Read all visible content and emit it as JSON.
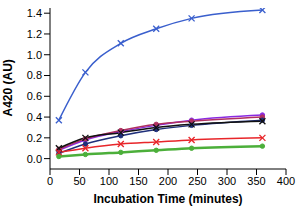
{
  "chart_data": {
    "type": "line",
    "x_label": "Incubation Time (minutes)",
    "y_label": "A420 (AU)",
    "x": [
      15,
      60,
      120,
      180,
      240,
      360
    ],
    "xlim": [
      0,
      400
    ],
    "xticks": [
      0,
      50,
      100,
      150,
      200,
      250,
      300,
      350,
      400
    ],
    "ylim": [
      -0.1,
      1.45
    ],
    "yticks": [
      {
        "value": 0,
        "label": "0.0"
      },
      0.2,
      0.4,
      0.6,
      0.8,
      {
        "value": 1,
        "label": "1.0"
      },
      1.2,
      1.4
    ],
    "grid": false,
    "series": [
      {
        "color": "#3a5fcd",
        "marker": "x",
        "values": [
          0.37,
          0.83,
          1.11,
          1.25,
          1.35,
          1.43
        ]
      },
      {
        "color": "#8a2be2",
        "marker": "circle",
        "values": [
          0.08,
          0.18,
          0.26,
          0.32,
          0.37,
          0.42
        ]
      },
      {
        "color": "#b03060",
        "marker": "circle",
        "values": [
          0.09,
          0.19,
          0.27,
          0.33,
          0.36,
          0.4
        ]
      },
      {
        "color": "#1f2f7a",
        "marker": "circle",
        "values": [
          0.05,
          0.14,
          0.22,
          0.28,
          0.32,
          0.37
        ]
      },
      {
        "color": "#111111",
        "marker": "x",
        "values": [
          0.1,
          0.2,
          0.25,
          0.3,
          0.33,
          0.36
        ]
      },
      {
        "color": "#e8262a",
        "marker": "x",
        "values": [
          0.06,
          0.1,
          0.14,
          0.16,
          0.18,
          0.2
        ]
      },
      {
        "color": "#4caf3a",
        "marker": "circle",
        "values": [
          0.02,
          0.04,
          0.06,
          0.08,
          0.1,
          0.12
        ]
      }
    ]
  }
}
